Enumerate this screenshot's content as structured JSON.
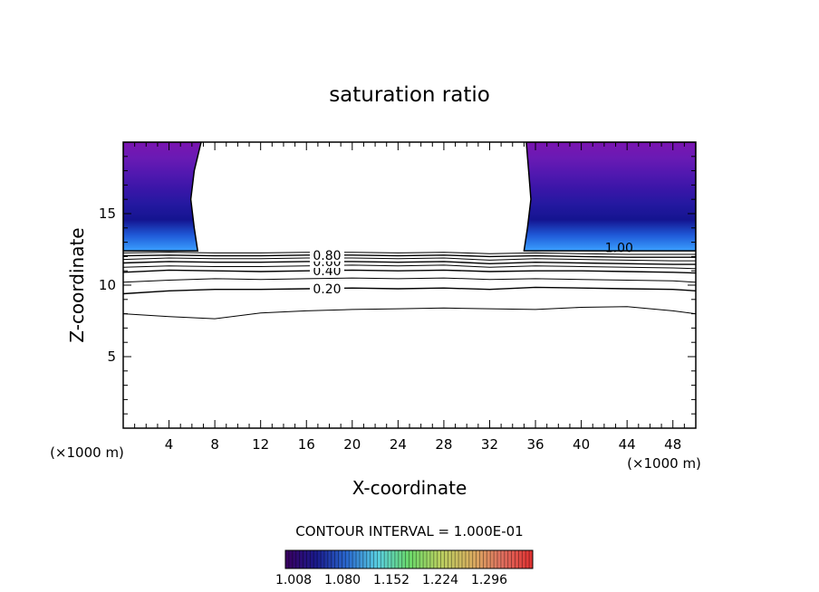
{
  "chart_data": {
    "type": "contour",
    "title": "saturation ratio",
    "xlabel": "X-coordinate",
    "ylabel": "Z-coordinate",
    "x_unit_left": "(×1000 m)",
    "x_unit_right": "(×1000 m)",
    "xlim": [
      0,
      50
    ],
    "ylim": [
      0,
      20
    ],
    "xticks": [
      4,
      8,
      12,
      16,
      20,
      24,
      28,
      32,
      36,
      40,
      44,
      48
    ],
    "yticks": [
      5,
      10,
      15
    ],
    "contour_interval_text": "CONTOUR INTERVAL = 1.000E-01",
    "contours": [
      {
        "level": 0.1,
        "label": "",
        "points": [
          [
            0,
            8.0
          ],
          [
            4,
            7.8
          ],
          [
            8,
            7.65
          ],
          [
            12,
            8.05
          ],
          [
            16,
            8.2
          ],
          [
            20,
            8.3
          ],
          [
            24,
            8.35
          ],
          [
            28,
            8.4
          ],
          [
            32,
            8.35
          ],
          [
            36,
            8.3
          ],
          [
            40,
            8.45
          ],
          [
            44,
            8.5
          ],
          [
            48,
            8.2
          ],
          [
            50,
            8.0
          ]
        ]
      },
      {
        "level": 0.2,
        "label": "0.20",
        "points": [
          [
            0,
            9.4
          ],
          [
            4,
            9.6
          ],
          [
            8,
            9.7
          ],
          [
            12,
            9.7
          ],
          [
            16,
            9.75
          ],
          [
            20,
            9.8
          ],
          [
            24,
            9.75
          ],
          [
            28,
            9.8
          ],
          [
            32,
            9.7
          ],
          [
            36,
            9.85
          ],
          [
            40,
            9.8
          ],
          [
            44,
            9.75
          ],
          [
            48,
            9.7
          ],
          [
            50,
            9.6
          ]
        ]
      },
      {
        "level": 0.3,
        "label": "",
        "points": [
          [
            0,
            10.2
          ],
          [
            4,
            10.35
          ],
          [
            8,
            10.45
          ],
          [
            12,
            10.4
          ],
          [
            16,
            10.45
          ],
          [
            20,
            10.5
          ],
          [
            24,
            10.45
          ],
          [
            28,
            10.5
          ],
          [
            32,
            10.4
          ],
          [
            36,
            10.45
          ],
          [
            40,
            10.4
          ],
          [
            44,
            10.35
          ],
          [
            48,
            10.3
          ],
          [
            50,
            10.2
          ]
        ]
      },
      {
        "level": 0.4,
        "label": "0.40",
        "points": [
          [
            0,
            10.9
          ],
          [
            4,
            11.05
          ],
          [
            8,
            11.0
          ],
          [
            12,
            10.95
          ],
          [
            16,
            11.0
          ],
          [
            20,
            11.05
          ],
          [
            24,
            11.0
          ],
          [
            28,
            11.05
          ],
          [
            32,
            10.95
          ],
          [
            36,
            11.0
          ],
          [
            40,
            11.0
          ],
          [
            44,
            10.95
          ],
          [
            48,
            10.9
          ],
          [
            50,
            10.85
          ]
        ]
      },
      {
        "level": 0.5,
        "label": "",
        "points": [
          [
            0,
            11.25
          ],
          [
            4,
            11.35
          ],
          [
            8,
            11.3
          ],
          [
            12,
            11.3
          ],
          [
            16,
            11.35
          ],
          [
            20,
            11.4
          ],
          [
            24,
            11.35
          ],
          [
            28,
            11.4
          ],
          [
            32,
            11.25
          ],
          [
            36,
            11.35
          ],
          [
            40,
            11.3
          ],
          [
            44,
            11.25
          ],
          [
            48,
            11.2
          ],
          [
            50,
            11.15
          ]
        ]
      },
      {
        "level": 0.6,
        "label": "0.60",
        "points": [
          [
            0,
            11.55
          ],
          [
            4,
            11.65
          ],
          [
            8,
            11.6
          ],
          [
            12,
            11.6
          ],
          [
            16,
            11.65
          ],
          [
            20,
            11.65
          ],
          [
            24,
            11.6
          ],
          [
            28,
            11.65
          ],
          [
            32,
            11.5
          ],
          [
            36,
            11.6
          ],
          [
            40,
            11.55
          ],
          [
            44,
            11.5
          ],
          [
            48,
            11.45
          ],
          [
            50,
            11.45
          ]
        ]
      },
      {
        "level": 0.7,
        "label": "",
        "points": [
          [
            0,
            11.8
          ],
          [
            4,
            11.9
          ],
          [
            8,
            11.85
          ],
          [
            12,
            11.85
          ],
          [
            16,
            11.9
          ],
          [
            20,
            11.9
          ],
          [
            24,
            11.85
          ],
          [
            28,
            11.9
          ],
          [
            32,
            11.75
          ],
          [
            36,
            11.85
          ],
          [
            40,
            11.8
          ],
          [
            44,
            11.75
          ],
          [
            48,
            11.7
          ],
          [
            50,
            11.7
          ]
        ]
      },
      {
        "level": 0.8,
        "label": "0.80",
        "points": [
          [
            0,
            12.05
          ],
          [
            4,
            12.1
          ],
          [
            8,
            12.05
          ],
          [
            12,
            12.05
          ],
          [
            16,
            12.1
          ],
          [
            20,
            12.1
          ],
          [
            24,
            12.05
          ],
          [
            28,
            12.1
          ],
          [
            32,
            12.0
          ],
          [
            36,
            12.05
          ],
          [
            40,
            12.0
          ],
          [
            44,
            11.95
          ],
          [
            48,
            11.95
          ],
          [
            50,
            11.95
          ]
        ]
      },
      {
        "level": 0.9,
        "label": "",
        "points": [
          [
            0,
            12.25
          ],
          [
            4,
            12.3
          ],
          [
            8,
            12.25
          ],
          [
            12,
            12.25
          ],
          [
            16,
            12.3
          ],
          [
            20,
            12.3
          ],
          [
            24,
            12.25
          ],
          [
            28,
            12.3
          ],
          [
            32,
            12.2
          ],
          [
            36,
            12.25
          ],
          [
            40,
            12.2
          ],
          [
            44,
            12.15
          ],
          [
            48,
            12.15
          ],
          [
            50,
            12.15
          ]
        ]
      }
    ],
    "supersaturated_regions": [
      {
        "boundary_label": "1.00",
        "points": [
          [
            0,
            20
          ],
          [
            6.8,
            20
          ],
          [
            6.2,
            18
          ],
          [
            5.9,
            16
          ],
          [
            6.2,
            14
          ],
          [
            6.5,
            12.4
          ],
          [
            0,
            12.4
          ]
        ]
      },
      {
        "boundary_label": "1.00",
        "points": [
          [
            35.2,
            20
          ],
          [
            50,
            20
          ],
          [
            50,
            12.4
          ],
          [
            35.0,
            12.4
          ],
          [
            35.3,
            14
          ],
          [
            35.6,
            16
          ],
          [
            35.4,
            18
          ]
        ]
      }
    ],
    "colorbar": {
      "ticks": [
        "1.008",
        "1.080",
        "1.152",
        "1.224",
        "1.296"
      ],
      "stops": [
        "#3a0060",
        "#1a1a8c",
        "#2a6ad0",
        "#5ad0e0",
        "#6ad86a",
        "#b8d060",
        "#d8b060",
        "#e07060",
        "#e03030"
      ]
    },
    "fill_colors": [
      "#7a14b0",
      "#6a1ab4",
      "#5218b0",
      "#3a16a8",
      "#2418a0",
      "#141490",
      "#1f5ad8",
      "#3aa0ff"
    ]
  }
}
